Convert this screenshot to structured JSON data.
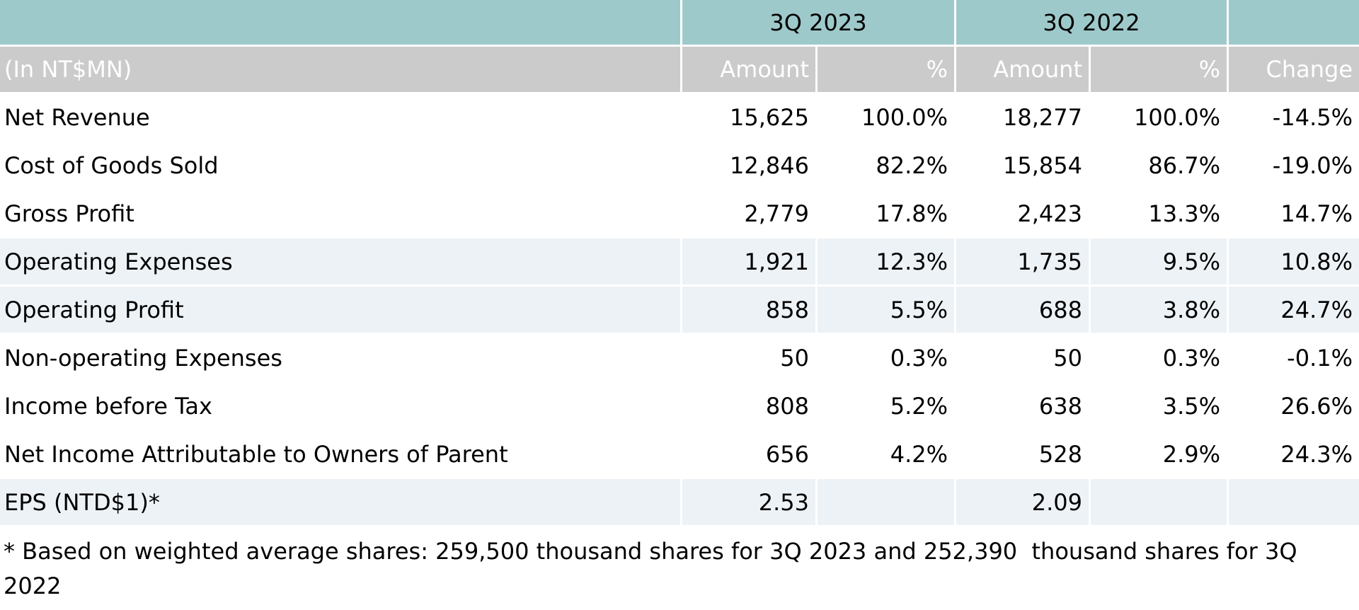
{
  "colors": {
    "group_header_bg": "#9ec9ca",
    "sub_header_bg": "#cbcbcb",
    "sub_header_text": "#ffffff",
    "highlight_row_bg": "#edf2f6",
    "body_text": "#000000"
  },
  "table": {
    "unit_label": "(In NT$MN)",
    "column_groups": [
      {
        "label": "3Q 2023"
      },
      {
        "label": "3Q 2022"
      }
    ],
    "sub_headers": [
      "Amount",
      "%",
      "Amount",
      "%",
      "Change"
    ],
    "rows": [
      {
        "label": "Net Revenue",
        "highlight": false,
        "values": [
          "15,625",
          "100.0%",
          "18,277",
          "100.0%",
          "-14.5%"
        ]
      },
      {
        "label": "Cost of Goods Sold",
        "highlight": false,
        "values": [
          "12,846",
          "82.2%",
          "15,854",
          "86.7%",
          "-19.0%"
        ]
      },
      {
        "label": "Gross Profit",
        "highlight": false,
        "values": [
          "2,779",
          "17.8%",
          "2,423",
          "13.3%",
          "14.7%"
        ]
      },
      {
        "label": "Operating Expenses",
        "highlight": true,
        "values": [
          "1,921",
          "12.3%",
          "1,735",
          "9.5%",
          "10.8%"
        ]
      },
      {
        "label": "Operating Profit",
        "highlight": true,
        "values": [
          "858",
          "5.5%",
          "688",
          "3.8%",
          "24.7%"
        ]
      },
      {
        "label": "Non-operating Expenses",
        "highlight": false,
        "values": [
          "50",
          "0.3%",
          "50",
          "0.3%",
          "-0.1%"
        ]
      },
      {
        "label": "Income before Tax",
        "highlight": false,
        "values": [
          "808",
          "5.2%",
          "638",
          "3.5%",
          "26.6%"
        ]
      },
      {
        "label": "Net Income Attributable to Owners of Parent",
        "highlight": false,
        "values": [
          "656",
          "4.2%",
          "528",
          "2.9%",
          "24.3%"
        ]
      },
      {
        "label": "EPS (NTD$1)*",
        "highlight": true,
        "values": [
          "2.53",
          "",
          "2.09",
          "",
          ""
        ]
      }
    ]
  },
  "footnote": {
    "line1": "* Based on weighted average shares: 259,500 thousand shares for 3Q 2023 and 252,390  thousand shares for 3Q",
    "line2": "2022"
  }
}
